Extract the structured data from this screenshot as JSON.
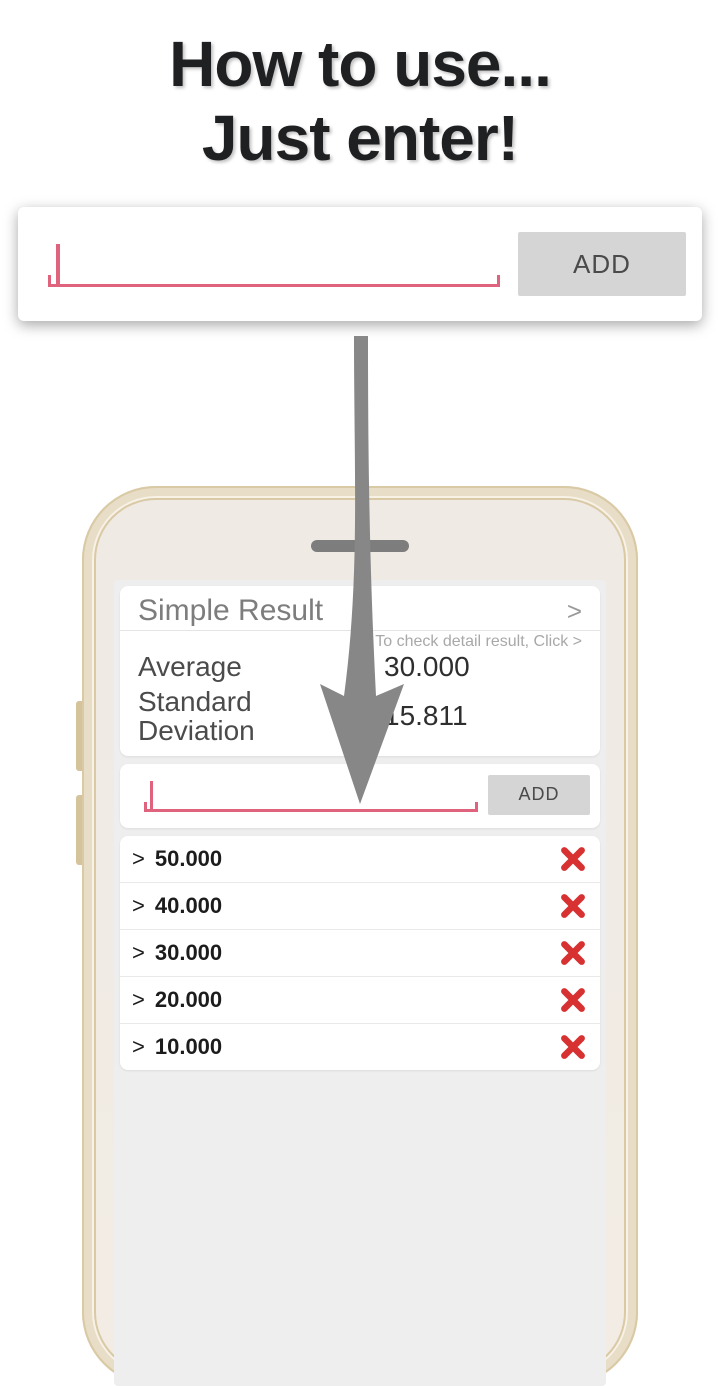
{
  "headline_line1": "How to use...",
  "headline_line2": "Just enter!",
  "accent_color": "#e0637e",
  "delete_color": "#d73131",
  "add_button_label": "ADD",
  "result": {
    "title": "Simple Result",
    "hint": "* To check detail result, Click >",
    "chevron": ">",
    "rows": [
      {
        "label": "Average",
        "value": "30.000"
      },
      {
        "label": "Standard Deviation",
        "value": "15.811"
      }
    ]
  },
  "entries": [
    "50.000",
    "40.000",
    "30.000",
    "20.000",
    "10.000"
  ]
}
